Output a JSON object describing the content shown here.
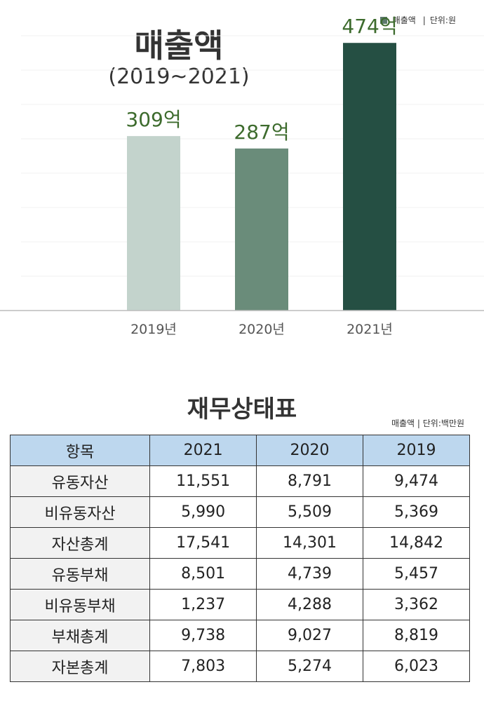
{
  "legend": {
    "name": "매출액",
    "unit": "단위:원",
    "color": "#5e7a6e"
  },
  "chart_data": {
    "type": "bar",
    "title": "매출액",
    "subtitle": "(2019~2021)",
    "categories": [
      "2019년",
      "2020년",
      "2021년"
    ],
    "values": [
      309,
      287,
      474
    ],
    "data_labels": [
      "309억",
      "287억",
      "474억"
    ],
    "colors": [
      "#c3d3cc",
      "#6a8c7a",
      "#254f43"
    ],
    "label_color": "#3d6b2d",
    "ylim": [
      0,
      550
    ],
    "grid": true
  },
  "table": {
    "title": "재무상태표",
    "unit": "매출액 | 단위:백만원",
    "headers": [
      "항목",
      "2021",
      "2020",
      "2019"
    ],
    "rows": [
      [
        "유동자산",
        "11,551",
        "8,791",
        "9,474"
      ],
      [
        "비유동자산",
        "5,990",
        "5,509",
        "5,369"
      ],
      [
        "자산총계",
        "17,541",
        "14,301",
        "14,842"
      ],
      [
        "유동부채",
        "8,501",
        "4,739",
        "5,457"
      ],
      [
        "비유동부채",
        "1,237",
        "4,288",
        "3,362"
      ],
      [
        "부채총계",
        "9,738",
        "9,027",
        "8,819"
      ],
      [
        "자본총계",
        "7,803",
        "5,274",
        "6,023"
      ]
    ]
  }
}
